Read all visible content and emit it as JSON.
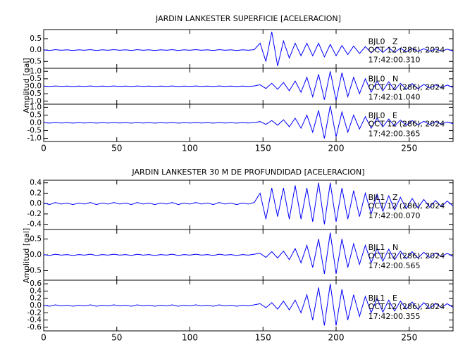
{
  "chart_data": [
    {
      "type": "line",
      "title": "JARDIN LANKESTER SUPERFICIE [ACELERACION]",
      "ylabel": "Amplitud [gal]",
      "xlim": [
        0,
        280
      ],
      "xticks": [
        0,
        50,
        100,
        150,
        200,
        250
      ],
      "x": [
        0,
        4,
        8,
        12,
        16,
        20,
        24,
        28,
        32,
        36,
        40,
        44,
        48,
        52,
        56,
        60,
        64,
        68,
        72,
        76,
        80,
        84,
        88,
        92,
        96,
        100,
        104,
        108,
        112,
        116,
        120,
        124,
        128,
        132,
        136,
        140,
        144,
        148,
        152,
        156,
        160,
        164,
        168,
        172,
        176,
        180,
        184,
        188,
        192,
        196,
        200,
        204,
        208,
        212,
        216,
        220,
        224,
        228,
        232,
        236,
        240,
        244,
        248,
        252,
        256,
        260,
        264,
        268,
        272,
        276,
        280
      ],
      "series": [
        {
          "name": "BJL0   Z",
          "date": "OCT 12 (286), 2024",
          "time": "17:42:00.310",
          "color": "#0000ff",
          "ylim": [
            -0.8,
            0.9
          ],
          "yticks": [
            0.5,
            {
              "value": 0,
              "label": "0.0"
            },
            -0.5
          ],
          "values": [
            0.01,
            -0.02,
            0.02,
            -0.01,
            0.01,
            -0.02,
            0.01,
            -0.01,
            0.02,
            -0.02,
            0.01,
            -0.01,
            0.02,
            -0.01,
            0.01,
            -0.02,
            0.02,
            -0.01,
            0.01,
            -0.02,
            0.01,
            -0.01,
            0.02,
            -0.02,
            0.01,
            -0.01,
            0.02,
            -0.01,
            0.01,
            -0.02,
            0.02,
            -0.01,
            0.01,
            -0.02,
            0.01,
            -0.01,
            0.02,
            0.3,
            -0.5,
            0.8,
            -0.7,
            0.4,
            -0.35,
            0.3,
            -0.25,
            0.3,
            -0.25,
            0.3,
            -0.3,
            0.25,
            -0.25,
            0.2,
            -0.2,
            0.18,
            -0.15,
            0.15,
            -0.12,
            0.12,
            -0.1,
            0.1,
            -0.1,
            0.08,
            -0.08,
            0.07,
            -0.06,
            0.06,
            -0.05,
            0.05,
            -0.05,
            0.04,
            -0.04
          ]
        },
        {
          "name": "BJL0   N",
          "date": "OCT 12 (286), 2024",
          "time": "17:42:01.040",
          "color": "#0000ff",
          "ylim": [
            -1.2,
            1.2
          ],
          "yticks": [
            {
              "value": 1,
              "label": "1.0"
            },
            0.5,
            {
              "value": 0,
              "label": "0.0"
            },
            -0.5,
            {
              "value": -1,
              "label": "-1.0"
            }
          ],
          "values": [
            0.01,
            -0.02,
            0.02,
            -0.01,
            0.01,
            -0.02,
            0.01,
            -0.01,
            0.02,
            -0.02,
            0.01,
            -0.01,
            0.02,
            -0.01,
            0.01,
            -0.02,
            0.02,
            -0.01,
            0.01,
            -0.02,
            0.01,
            -0.01,
            0.02,
            -0.02,
            0.01,
            -0.01,
            0.02,
            -0.01,
            0.01,
            -0.02,
            0.02,
            -0.01,
            0.01,
            -0.02,
            0.01,
            -0.01,
            0.02,
            0.1,
            -0.15,
            0.2,
            -0.2,
            0.25,
            -0.3,
            0.35,
            -0.4,
            0.6,
            -0.7,
            0.8,
            -0.9,
            1.0,
            -0.95,
            0.9,
            -0.7,
            0.6,
            -0.5,
            0.5,
            -0.4,
            0.35,
            -0.3,
            0.3,
            -0.25,
            0.2,
            -0.2,
            0.18,
            -0.15,
            0.12,
            -0.12,
            0.1,
            -0.1,
            0.08,
            -0.08
          ]
        },
        {
          "name": "BJL0   E",
          "date": "OCT 12 (286), 2024",
          "time": "17:42:00.365",
          "color": "#0000ff",
          "ylim": [
            -1.2,
            1.2
          ],
          "yticks": [
            {
              "value": 1,
              "label": "1.0"
            },
            0.5,
            {
              "value": 0,
              "label": "0.0"
            },
            -0.5,
            {
              "value": -1,
              "label": "-1.0"
            }
          ],
          "values": [
            0.01,
            -0.02,
            0.02,
            -0.01,
            0.01,
            -0.02,
            0.01,
            -0.01,
            0.02,
            -0.02,
            0.01,
            -0.01,
            0.02,
            -0.01,
            0.01,
            -0.02,
            0.02,
            -0.01,
            0.01,
            -0.02,
            0.01,
            -0.01,
            0.02,
            -0.02,
            0.01,
            -0.01,
            0.02,
            -0.01,
            0.01,
            -0.02,
            0.02,
            -0.01,
            0.01,
            -0.02,
            0.01,
            -0.01,
            0.02,
            0.08,
            -0.1,
            0.15,
            -0.15,
            0.2,
            -0.25,
            0.3,
            -0.35,
            0.5,
            -0.6,
            0.8,
            -1.0,
            1.1,
            -0.9,
            0.7,
            -0.6,
            0.5,
            -0.4,
            0.4,
            -0.35,
            0.3,
            -0.25,
            0.25,
            -0.2,
            0.18,
            -0.15,
            0.15,
            -0.12,
            0.1,
            -0.1,
            0.08,
            -0.08,
            0.06,
            -0.06
          ]
        }
      ]
    },
    {
      "type": "line",
      "title": "JARDIN LANKESTER 30 M DE PROFUNDIDAD [ACELERACION]",
      "ylabel": "Amplitud [gal]",
      "xlim": [
        0,
        280
      ],
      "xticks": [
        0,
        50,
        100,
        150,
        200,
        250
      ],
      "x": [
        0,
        4,
        8,
        12,
        16,
        20,
        24,
        28,
        32,
        36,
        40,
        44,
        48,
        52,
        56,
        60,
        64,
        68,
        72,
        76,
        80,
        84,
        88,
        92,
        96,
        100,
        104,
        108,
        112,
        116,
        120,
        124,
        128,
        132,
        136,
        140,
        144,
        148,
        152,
        156,
        160,
        164,
        168,
        172,
        176,
        180,
        184,
        188,
        192,
        196,
        200,
        204,
        208,
        212,
        216,
        220,
        224,
        228,
        232,
        236,
        240,
        244,
        248,
        252,
        256,
        260,
        264,
        268,
        272,
        276,
        280
      ],
      "series": [
        {
          "name": "BJL1   Z",
          "date": "OCT 12 (286), 2024",
          "time": "17:42:00.070",
          "color": "#0000ff",
          "ylim": [
            -0.5,
            0.45
          ],
          "yticks": [
            0.4,
            0.2,
            {
              "value": 0,
              "label": "0.0"
            },
            -0.2,
            -0.4
          ],
          "values": [
            0.01,
            -0.02,
            0.02,
            -0.01,
            0.01,
            -0.02,
            0.01,
            -0.01,
            0.02,
            -0.02,
            0.01,
            -0.01,
            0.02,
            -0.01,
            0.01,
            -0.02,
            0.02,
            -0.01,
            0.01,
            -0.02,
            0.01,
            -0.01,
            0.02,
            -0.02,
            0.01,
            -0.01,
            0.02,
            -0.01,
            0.01,
            -0.02,
            0.02,
            -0.01,
            0.01,
            -0.02,
            0.01,
            -0.01,
            0.02,
            0.2,
            -0.3,
            0.3,
            -0.25,
            0.3,
            -0.3,
            0.35,
            -0.3,
            0.3,
            -0.35,
            0.4,
            -0.4,
            0.4,
            -0.35,
            0.3,
            -0.3,
            0.25,
            -0.25,
            0.2,
            -0.2,
            0.18,
            -0.15,
            0.15,
            -0.12,
            0.12,
            -0.1,
            0.1,
            -0.08,
            0.08,
            -0.07,
            0.06,
            -0.06,
            0.05,
            -0.05
          ]
        },
        {
          "name": "BJL1   N",
          "date": "OCT 12 (286), 2024",
          "time": "17:42:00.565",
          "color": "#0000ff",
          "ylim": [
            -0.8,
            0.8
          ],
          "yticks": [
            0.5,
            {
              "value": 0,
              "label": "0.0"
            },
            -0.5
          ],
          "values": [
            0.01,
            -0.02,
            0.02,
            -0.01,
            0.01,
            -0.02,
            0.01,
            -0.01,
            0.02,
            -0.02,
            0.01,
            -0.01,
            0.02,
            -0.01,
            0.01,
            -0.02,
            0.02,
            -0.01,
            0.01,
            -0.02,
            0.01,
            -0.01,
            0.02,
            -0.02,
            0.01,
            -0.01,
            0.02,
            -0.01,
            0.01,
            -0.02,
            0.02,
            -0.01,
            0.01,
            -0.02,
            0.01,
            -0.01,
            0.02,
            0.05,
            -0.08,
            0.1,
            -0.1,
            0.12,
            -0.15,
            0.2,
            -0.25,
            0.3,
            -0.4,
            0.5,
            -0.6,
            0.7,
            -0.6,
            0.5,
            -0.4,
            0.35,
            -0.3,
            0.3,
            -0.25,
            0.2,
            -0.2,
            0.18,
            -0.15,
            0.12,
            -0.12,
            0.1,
            -0.1,
            0.08,
            -0.08,
            0.06,
            -0.06,
            0.05,
            -0.05
          ]
        },
        {
          "name": "BJL1   E",
          "date": "OCT 12 (286), 2024",
          "time": "17:42:00.355",
          "color": "#0000ff",
          "ylim": [
            -0.7,
            0.7
          ],
          "yticks": [
            0.6,
            0.4,
            0.2,
            {
              "value": 0,
              "label": "0.0"
            },
            -0.2,
            -0.4,
            -0.6
          ],
          "values": [
            0.01,
            -0.02,
            0.02,
            -0.01,
            0.01,
            -0.02,
            0.01,
            -0.01,
            0.02,
            -0.02,
            0.01,
            -0.01,
            0.02,
            -0.01,
            0.01,
            -0.02,
            0.02,
            -0.01,
            0.01,
            -0.02,
            0.01,
            -0.01,
            0.02,
            -0.02,
            0.01,
            -0.01,
            0.02,
            -0.01,
            0.01,
            -0.02,
            0.02,
            -0.01,
            0.01,
            -0.02,
            0.01,
            -0.01,
            0.02,
            0.05,
            -0.06,
            0.08,
            -0.1,
            0.12,
            -0.12,
            0.15,
            -0.2,
            0.3,
            -0.4,
            0.5,
            -0.55,
            0.6,
            -0.55,
            0.45,
            -0.4,
            0.3,
            -0.3,
            0.25,
            -0.2,
            0.2,
            -0.18,
            0.15,
            -0.15,
            0.12,
            -0.1,
            0.1,
            -0.1,
            0.08,
            -0.08,
            0.06,
            -0.06,
            0.05,
            -0.05
          ]
        }
      ]
    }
  ]
}
